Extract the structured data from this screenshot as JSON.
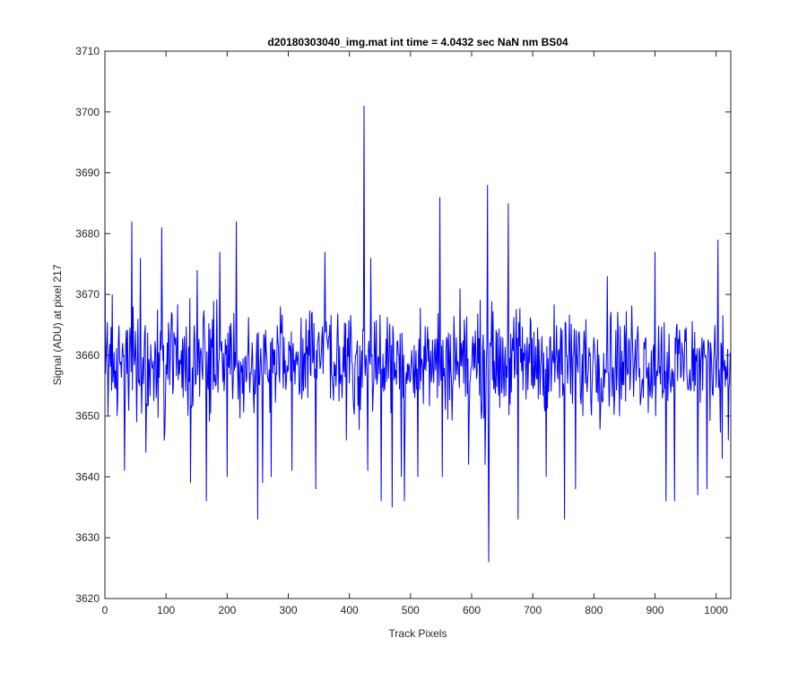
{
  "chart_data": {
    "type": "line",
    "title": "d20180303040_img.mat int time = 4.0432 sec  NaN nm BS04",
    "xlabel": "Track Pixels",
    "ylabel": "Signal (ADU) at pixel 217",
    "xlim": [
      0,
      1024
    ],
    "ylim": [
      3620,
      3710
    ],
    "xticks": [
      "0",
      "100",
      "200",
      "300",
      "400",
      "500",
      "600",
      "700",
      "800",
      "900",
      "1000"
    ],
    "yticks": [
      "3620",
      "3630",
      "3640",
      "3650",
      "3660",
      "3670",
      "3680",
      "3690",
      "3700",
      "3710"
    ],
    "grid": false,
    "legend": "none",
    "series": [
      {
        "color": "#0000ff",
        "noise": {
          "n": 1024,
          "mean": 3659,
          "amplitude": 8,
          "seed": 217
        },
        "peaks": [
          [
            0,
            3682
          ],
          [
            5,
            3650
          ],
          [
            12,
            3670
          ],
          [
            20,
            3650
          ],
          [
            32,
            3641
          ],
          [
            44,
            3682
          ],
          [
            52,
            3649
          ],
          [
            58,
            3676
          ],
          [
            67,
            3644
          ],
          [
            93,
            3681
          ],
          [
            97,
            3646
          ],
          [
            140,
            3639
          ],
          [
            151,
            3674
          ],
          [
            166,
            3636
          ],
          [
            188,
            3677
          ],
          [
            200,
            3640
          ],
          [
            215,
            3682
          ],
          [
            250,
            3633
          ],
          [
            258,
            3639
          ],
          [
            272,
            3640
          ],
          [
            306,
            3641
          ],
          [
            345,
            3638
          ],
          [
            360,
            3677
          ],
          [
            395,
            3646
          ],
          [
            424,
            3701
          ],
          [
            430,
            3641
          ],
          [
            435,
            3676
          ],
          [
            452,
            3636
          ],
          [
            470,
            3635
          ],
          [
            485,
            3640
          ],
          [
            490,
            3636
          ],
          [
            512,
            3640
          ],
          [
            548,
            3686
          ],
          [
            552,
            3640
          ],
          [
            581,
            3671
          ],
          [
            595,
            3642
          ],
          [
            622,
            3642
          ],
          [
            626,
            3688
          ],
          [
            628,
            3626
          ],
          [
            660,
            3685
          ],
          [
            676,
            3633
          ],
          [
            722,
            3640
          ],
          [
            752,
            3633
          ],
          [
            770,
            3638
          ],
          [
            782,
            3650
          ],
          [
            822,
            3673
          ],
          [
            900,
            3677
          ],
          [
            918,
            3636
          ],
          [
            932,
            3636
          ],
          [
            970,
            3637
          ],
          [
            985,
            3638
          ],
          [
            1003,
            3679
          ],
          [
            1010,
            3643
          ],
          [
            1020,
            3646
          ]
        ]
      }
    ]
  }
}
